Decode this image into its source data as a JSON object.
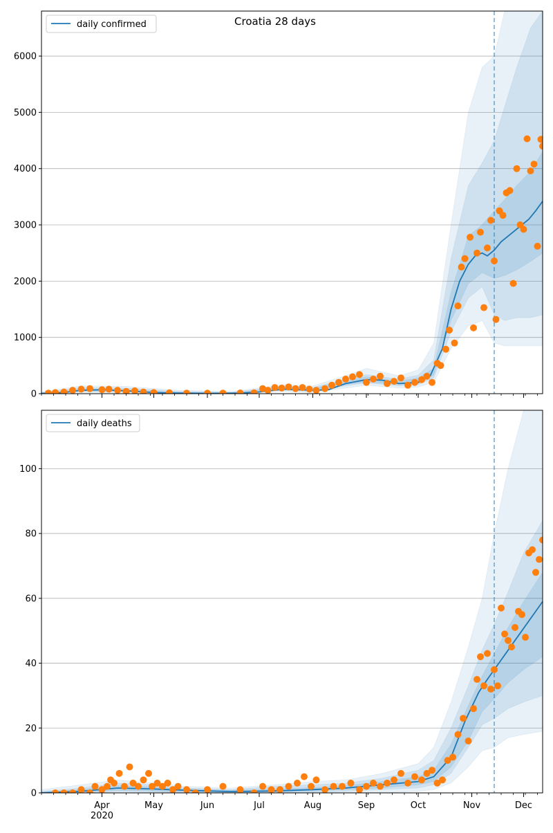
{
  "figure": {
    "title": "Croatia 28 days"
  },
  "colors": {
    "line": "#1f77b4",
    "points": "#ff7f0e",
    "band": "#1f77b4",
    "grid": "#b0b0b0",
    "vline": "#1f77b4"
  },
  "x_axis": {
    "start": "2020-02-26",
    "end": "2020-12-12",
    "month_labels": [
      "Apr",
      "May",
      "Jun",
      "Jul",
      "Aug",
      "Sep",
      "Oct",
      "Nov",
      "Dec"
    ],
    "month_dates": [
      "2020-04-01",
      "2020-05-01",
      "2020-06-01",
      "2020-07-01",
      "2020-08-01",
      "2020-09-01",
      "2020-10-01",
      "2020-11-01",
      "2020-12-01"
    ],
    "year_label": "2020",
    "forecast_start": "2020-11-14"
  },
  "chart_data": [
    {
      "type": "line",
      "legend": "daily confirmed",
      "legend_position": "top-left",
      "grid": "y",
      "ylim": [
        0,
        6800
      ],
      "yticks": [
        0,
        1000,
        2000,
        3000,
        4000,
        5000,
        6000
      ],
      "line": {
        "dates": [
          "2020-02-26",
          "2020-03-10",
          "2020-03-20",
          "2020-04-01",
          "2020-04-15",
          "2020-05-01",
          "2020-05-15",
          "2020-06-01",
          "2020-06-20",
          "2020-07-01",
          "2020-07-15",
          "2020-08-01",
          "2020-08-10",
          "2020-08-20",
          "2020-09-01",
          "2020-09-10",
          "2020-09-20",
          "2020-10-01",
          "2020-10-08",
          "2020-10-15",
          "2020-10-20",
          "2020-10-25",
          "2020-10-30",
          "2020-11-03",
          "2020-11-07",
          "2020-11-10",
          "2020-11-14",
          "2020-11-18",
          "2020-11-22",
          "2020-11-26",
          "2020-11-30",
          "2020-12-04",
          "2020-12-08",
          "2020-12-12"
        ],
        "values": [
          5,
          20,
          60,
          70,
          50,
          20,
          10,
          5,
          10,
          30,
          80,
          60,
          70,
          180,
          250,
          240,
          180,
          200,
          320,
          800,
          1500,
          2000,
          2300,
          2450,
          2500,
          2450,
          2550,
          2700,
          2800,
          2900,
          3000,
          3100,
          3250,
          3420
        ]
      },
      "bands": {
        "dates": [
          "2020-02-26",
          "2020-03-20",
          "2020-04-15",
          "2020-05-15",
          "2020-06-15",
          "2020-07-15",
          "2020-08-01",
          "2020-08-20",
          "2020-09-01",
          "2020-09-20",
          "2020-10-01",
          "2020-10-10",
          "2020-10-20",
          "2020-10-30",
          "2020-11-07",
          "2020-11-14",
          "2020-11-20",
          "2020-11-27",
          "2020-12-05",
          "2020-12-12"
        ],
        "outer_low": [
          0,
          20,
          20,
          0,
          0,
          40,
          20,
          100,
          150,
          100,
          120,
          200,
          800,
          1200,
          1300,
          900,
          850,
          850,
          850,
          850
        ],
        "outer_high": [
          30,
          140,
          130,
          60,
          40,
          160,
          140,
          320,
          450,
          320,
          420,
          900,
          3000,
          5000,
          5800,
          6000,
          6800,
          6800,
          6800,
          6800
        ],
        "mid_low": [
          0,
          40,
          30,
          5,
          5,
          60,
          40,
          140,
          190,
          140,
          160,
          280,
          1100,
          1700,
          1900,
          1400,
          1300,
          1350,
          1350,
          1400
        ],
        "mid_high": [
          20,
          110,
          100,
          40,
          25,
          130,
          110,
          260,
          340,
          260,
          330,
          600,
          2400,
          3700,
          4100,
          4500,
          5100,
          5800,
          6500,
          6800
        ],
        "inner_low": [
          2,
          50,
          40,
          10,
          5,
          70,
          50,
          160,
          210,
          160,
          180,
          330,
          1300,
          1950,
          2150,
          2050,
          2100,
          2200,
          2350,
          2500
        ],
        "inner_high": [
          10,
          80,
          70,
          30,
          20,
          100,
          90,
          220,
          300,
          220,
          280,
          450,
          1800,
          2800,
          3000,
          3250,
          3450,
          3700,
          3950,
          4300
        ]
      },
      "points": {
        "x": [
          "2020-03-01",
          "2020-03-05",
          "2020-03-10",
          "2020-03-15",
          "2020-03-20",
          "2020-03-25",
          "2020-04-01",
          "2020-04-05",
          "2020-04-10",
          "2020-04-15",
          "2020-04-20",
          "2020-04-25",
          "2020-05-01",
          "2020-05-10",
          "2020-05-20",
          "2020-06-01",
          "2020-06-10",
          "2020-06-20",
          "2020-06-28",
          "2020-07-03",
          "2020-07-06",
          "2020-07-10",
          "2020-07-14",
          "2020-07-18",
          "2020-07-22",
          "2020-07-26",
          "2020-07-30",
          "2020-08-03",
          "2020-08-08",
          "2020-08-12",
          "2020-08-16",
          "2020-08-20",
          "2020-08-24",
          "2020-08-28",
          "2020-09-01",
          "2020-09-05",
          "2020-09-09",
          "2020-09-13",
          "2020-09-17",
          "2020-09-21",
          "2020-09-25",
          "2020-09-29",
          "2020-10-03",
          "2020-10-06",
          "2020-10-09",
          "2020-10-12",
          "2020-10-14",
          "2020-10-17",
          "2020-10-19",
          "2020-10-22",
          "2020-10-24",
          "2020-10-26",
          "2020-10-28",
          "2020-10-31",
          "2020-11-02",
          "2020-11-04",
          "2020-11-06",
          "2020-11-08",
          "2020-11-10",
          "2020-11-12",
          "2020-11-14",
          "2020-11-15",
          "2020-11-17",
          "2020-11-19",
          "2020-11-21",
          "2020-11-23",
          "2020-11-25",
          "2020-11-27",
          "2020-11-29",
          "2020-12-01",
          "2020-12-03",
          "2020-12-05",
          "2020-12-07",
          "2020-12-09",
          "2020-12-11",
          "2020-12-12"
        ],
        "y": [
          10,
          20,
          30,
          60,
          80,
          90,
          70,
          80,
          60,
          40,
          50,
          30,
          20,
          15,
          10,
          8,
          10,
          12,
          15,
          90,
          60,
          110,
          100,
          120,
          90,
          110,
          80,
          60,
          90,
          150,
          200,
          260,
          300,
          340,
          200,
          260,
          310,
          180,
          220,
          280,
          150,
          200,
          250,
          310,
          200,
          540,
          500,
          790,
          1130,
          900,
          1560,
          2250,
          2400,
          2780,
          1170,
          2500,
          2870,
          1530,
          2590,
          3080,
          2360,
          1320,
          3250,
          3170,
          3570,
          3610,
          1960,
          4000,
          3000,
          2920,
          4530,
          3960,
          4080,
          2620,
          4520,
          4400
        ]
      }
    },
    {
      "type": "line",
      "legend": "daily deaths",
      "legend_position": "top-left",
      "grid": "y",
      "ylim": [
        0,
        118
      ],
      "yticks": [
        0,
        20,
        40,
        60,
        80,
        100
      ],
      "line": {
        "dates": [
          "2020-02-26",
          "2020-03-20",
          "2020-04-10",
          "2020-05-01",
          "2020-05-20",
          "2020-06-15",
          "2020-07-10",
          "2020-08-01",
          "2020-08-20",
          "2020-09-10",
          "2020-10-01",
          "2020-10-10",
          "2020-10-20",
          "2020-10-28",
          "2020-11-05",
          "2020-11-10",
          "2020-11-14",
          "2020-11-18",
          "2020-11-22",
          "2020-11-26",
          "2020-11-30",
          "2020-12-04",
          "2020-12-08",
          "2020-12-12"
        ],
        "values": [
          0,
          0.5,
          1.5,
          1.2,
          0.8,
          0.4,
          0.6,
          1,
          1.5,
          2.5,
          3.5,
          5,
          11,
          22,
          31,
          35,
          38,
          41,
          44,
          47,
          50,
          53,
          56,
          59
        ]
      },
      "bands": {
        "dates": [
          "2020-02-26",
          "2020-03-20",
          "2020-04-10",
          "2020-05-01",
          "2020-05-20",
          "2020-06-15",
          "2020-07-10",
          "2020-08-01",
          "2020-08-20",
          "2020-09-10",
          "2020-10-01",
          "2020-10-10",
          "2020-10-20",
          "2020-10-30",
          "2020-11-07",
          "2020-11-14",
          "2020-11-22",
          "2020-12-01",
          "2020-12-12"
        ],
        "outer_low": [
          0,
          0,
          0,
          0,
          0,
          0,
          0,
          0,
          0,
          0,
          0.5,
          1,
          3,
          8,
          13,
          14,
          17,
          18,
          19
        ],
        "outer_high": [
          1,
          2.5,
          4,
          3,
          2,
          1.5,
          2.5,
          3.5,
          4,
          6,
          9,
          14,
          28,
          45,
          60,
          80,
          100,
          118,
          118
        ],
        "mid_low": [
          0,
          0,
          0.5,
          0.3,
          0,
          0,
          0,
          0.2,
          0.5,
          1,
          1.5,
          2.5,
          6,
          14,
          21,
          23,
          26,
          28,
          30
        ],
        "mid_high": [
          0.5,
          1.5,
          3,
          2.5,
          1.5,
          1,
          2,
          2.5,
          3,
          4.5,
          7,
          10,
          20,
          33,
          44,
          52,
          62,
          74,
          84
        ],
        "inner_low": [
          0,
          0.2,
          0.8,
          0.6,
          0.3,
          0.1,
          0.3,
          0.6,
          1,
          1.5,
          2.5,
          3.5,
          8,
          16,
          25,
          29,
          34,
          38,
          42
        ],
        "inner_high": [
          0.3,
          1,
          2.2,
          1.8,
          1.2,
          0.8,
          1.2,
          1.6,
          2.2,
          3.5,
          5,
          7,
          15,
          27,
          36,
          43,
          51,
          59,
          68
        ]
      },
      "points": {
        "x": [
          "2020-03-05",
          "2020-03-10",
          "2020-03-15",
          "2020-03-20",
          "2020-03-25",
          "2020-03-28",
          "2020-04-01",
          "2020-04-04",
          "2020-04-06",
          "2020-04-08",
          "2020-04-11",
          "2020-04-14",
          "2020-04-17",
          "2020-04-19",
          "2020-04-22",
          "2020-04-25",
          "2020-04-28",
          "2020-04-30",
          "2020-05-03",
          "2020-05-06",
          "2020-05-09",
          "2020-05-12",
          "2020-05-15",
          "2020-05-20",
          "2020-05-25",
          "2020-06-01",
          "2020-06-10",
          "2020-06-20",
          "2020-06-28",
          "2020-07-03",
          "2020-07-08",
          "2020-07-13",
          "2020-07-18",
          "2020-07-23",
          "2020-07-27",
          "2020-07-31",
          "2020-08-03",
          "2020-08-08",
          "2020-08-13",
          "2020-08-18",
          "2020-08-23",
          "2020-08-28",
          "2020-09-01",
          "2020-09-05",
          "2020-09-09",
          "2020-09-13",
          "2020-09-17",
          "2020-09-21",
          "2020-09-25",
          "2020-09-29",
          "2020-10-03",
          "2020-10-06",
          "2020-10-09",
          "2020-10-12",
          "2020-10-15",
          "2020-10-18",
          "2020-10-21",
          "2020-10-24",
          "2020-10-27",
          "2020-10-30",
          "2020-11-02",
          "2020-11-04",
          "2020-11-06",
          "2020-11-08",
          "2020-11-10",
          "2020-11-12",
          "2020-11-14",
          "2020-11-16",
          "2020-11-18",
          "2020-11-20",
          "2020-11-22",
          "2020-11-24",
          "2020-11-26",
          "2020-11-28",
          "2020-11-30",
          "2020-12-02",
          "2020-12-04",
          "2020-12-06",
          "2020-12-08",
          "2020-12-10",
          "2020-12-12"
        ],
        "y": [
          0,
          0,
          0,
          1,
          0,
          2,
          1,
          2,
          4,
          3,
          6,
          2,
          8,
          3,
          2,
          4,
          6,
          2,
          3,
          2,
          3,
          1,
          2,
          1,
          0,
          1,
          2,
          1,
          0,
          2,
          1,
          1,
          2,
          3,
          5,
          2,
          4,
          1,
          2,
          2,
          3,
          1,
          2,
          3,
          2,
          3,
          4,
          6,
          3,
          5,
          4,
          6,
          7,
          3,
          4,
          10,
          11,
          18,
          23,
          16,
          26,
          35,
          42,
          33,
          43,
          32,
          38,
          33,
          57,
          49,
          47,
          45,
          51,
          56,
          55,
          48,
          74,
          75,
          68,
          72,
          78
        ]
      }
    }
  ]
}
